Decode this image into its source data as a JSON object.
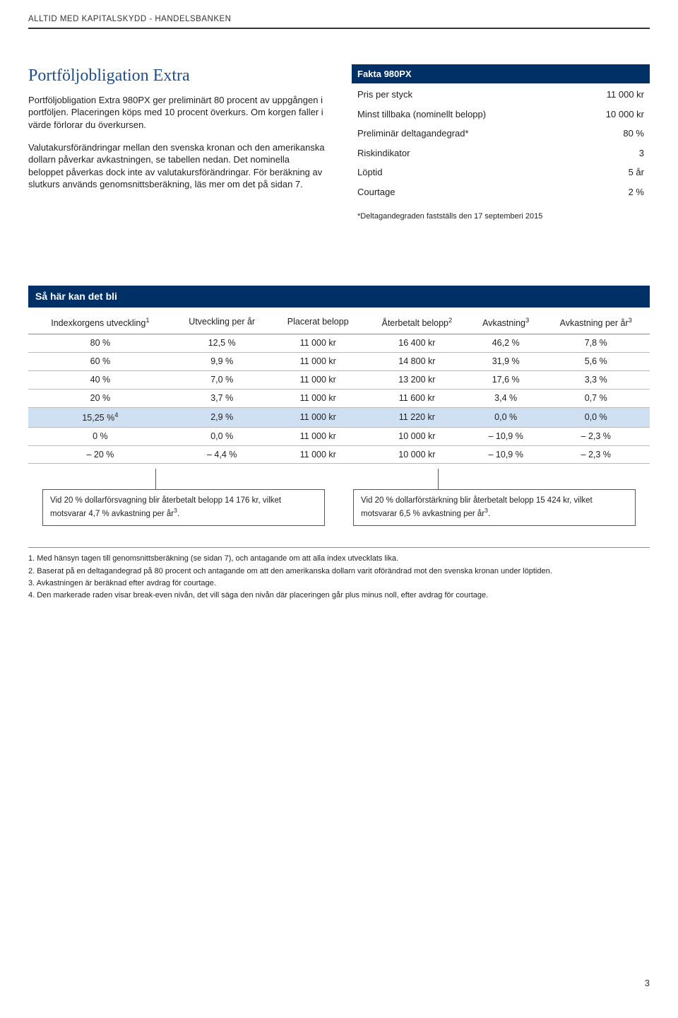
{
  "header": "ALLTID MED KAPITALSKYDD - HANDELSBANKEN",
  "title": "Portföljobligation Extra",
  "paragraph1": "Portföljobligation Extra 980PX ger preliminärt 80 procent av uppgången i portföljen. Placeringen köps med 10 procent överkurs. Om korgen faller i värde förlorar du överkursen.",
  "paragraph2": "Valutakursförändringar mellan den svenska kronan och den amerikanska dollarn påverkar avkastningen, se tabellen nedan. Det nominella beloppet påverkas dock inte av valutakursförändringar. För beräkning av slutkurs används genomsnittsberäkning, läs mer om det på sidan 7.",
  "fakta": {
    "title": "Fakta 980PX",
    "rows": [
      {
        "label": "Pris per styck",
        "value": "11 000 kr"
      },
      {
        "label": "Minst tillbaka (nominellt belopp)",
        "value": "10 000 kr"
      },
      {
        "label": "Preliminär deltagandegrad*",
        "value": "80 %"
      },
      {
        "label": "Riskindikator",
        "value": "3"
      },
      {
        "label": "Löptid",
        "value": "5 år"
      },
      {
        "label": "Courtage",
        "value": "2 %"
      }
    ],
    "note": "*Deltagandegraden fastställs den 17 septemberi 2015"
  },
  "scenario": {
    "header": "Så här kan det bli",
    "columns": [
      "Indexkorgens utveckling",
      "Utveckling per år",
      "Placerat belopp",
      "Återbetalt belopp",
      "Avkastning",
      "Avkastning per år"
    ],
    "column_sup": [
      "1",
      "",
      "",
      "2",
      "3",
      "3"
    ],
    "rows": [
      [
        "80 %",
        "12,5 %",
        "11 000 kr",
        "16 400 kr",
        "46,2 %",
        "7,8 %"
      ],
      [
        "60 %",
        "9,9 %",
        "11 000 kr",
        "14 800 kr",
        "31,9 %",
        "5,6 %"
      ],
      [
        "40 %",
        "7,0 %",
        "11 000 kr",
        "13 200 kr",
        "17,6 %",
        "3,3 %"
      ],
      [
        "20 %",
        "3,7 %",
        "11 000 kr",
        "11 600 kr",
        "3,4 %",
        "0,7 %"
      ],
      [
        "15,25 %",
        "2,9 %",
        "11 000 kr",
        "11 220 kr",
        "0,0 %",
        "0,0 %"
      ],
      [
        "0 %",
        "0,0 %",
        "11 000 kr",
        "10 000 kr",
        "– 10,9 %",
        "– 2,3 %"
      ],
      [
        "– 20 %",
        "– 4,4 %",
        "11 000 kr",
        "10 000 kr",
        "– 10,9 %",
        "– 2,3 %"
      ]
    ],
    "row4_sup": "4",
    "highlight_row": 4,
    "callout_left": "Vid 20 % dollarförsvagning blir återbetalt belopp 14 176 kr, vilket motsvarar 4,7 % avkastning per år",
    "callout_left_sup": "3",
    "callout_right": "Vid 20 % dollarförstärkning blir återbetalt belopp 15 424 kr, vilket motsvarar 6,5 % avkastning per år",
    "callout_right_sup": "3"
  },
  "footnotes": [
    "1. Med hänsyn tagen till genomsnittsberäkning (se sidan 7), och antagande om att alla index utvecklats lika.",
    "2. Baserat på en deltagandegrad på 80 procent och antagande om att den amerikanska dollarn varit oförändrad mot den svenska kronan under löptiden.",
    "3. Avkastningen är beräknad efter avdrag för courtage.",
    "4. Den markerade raden visar break-even nivån, det vill säga den nivån där placeringen går plus minus noll, efter avdrag för courtage."
  ],
  "page_number": "3",
  "colors": {
    "brand_blue": "#003066",
    "title_blue": "#1d4f91",
    "highlight": "#cfe0f2"
  }
}
